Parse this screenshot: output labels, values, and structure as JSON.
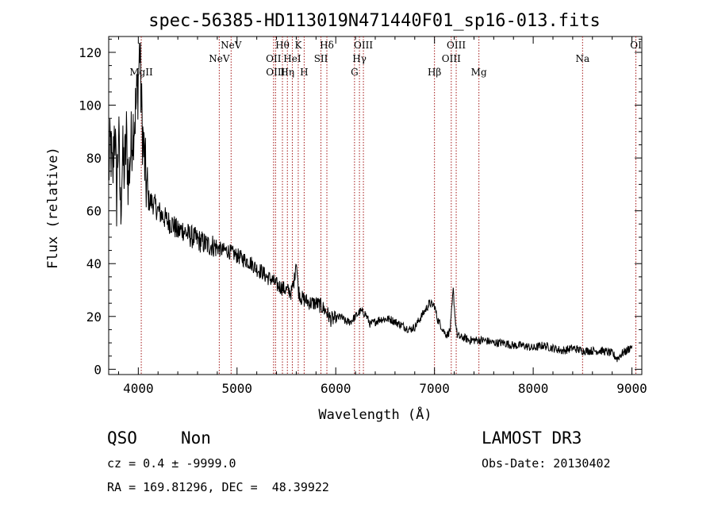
{
  "chart_data": {
    "type": "line",
    "title": "spec-56385-HD113019N471440F01_sp16-013.fits",
    "xlabel": "Wavelength (Å)",
    "ylabel": "Flux (relative)",
    "xlim": [
      3700,
      9100
    ],
    "ylim": [
      -2,
      126
    ],
    "xticks": [
      4000,
      5000,
      6000,
      7000,
      8000,
      9000
    ],
    "xtick_labels": [
      "4000",
      "5000",
      "6000",
      "7000",
      "8000",
      "9000"
    ],
    "yticks": [
      0,
      20,
      40,
      60,
      80,
      100,
      120
    ],
    "ytick_labels": [
      "0",
      "20",
      "40",
      "60",
      "80",
      "100",
      "120"
    ],
    "grid": false,
    "series": [
      {
        "name": "flux",
        "x": [
          3700,
          3720,
          3740,
          3760,
          3780,
          3800,
          3820,
          3840,
          3860,
          3880,
          3900,
          3920,
          3940,
          3960,
          3980,
          4000,
          4015,
          4030,
          4050,
          4080,
          4100,
          4150,
          4200,
          4250,
          4300,
          4350,
          4400,
          4450,
          4500,
          4550,
          4600,
          4650,
          4700,
          4750,
          4800,
          4850,
          4900,
          4950,
          5000,
          5050,
          5100,
          5150,
          5200,
          5250,
          5300,
          5350,
          5400,
          5450,
          5500,
          5550,
          5580,
          5600,
          5620,
          5650,
          5700,
          5750,
          5800,
          5850,
          5900,
          5950,
          6000,
          6050,
          6100,
          6150,
          6200,
          6250,
          6300,
          6350,
          6400,
          6450,
          6500,
          6550,
          6600,
          6650,
          6700,
          6750,
          6800,
          6850,
          6900,
          6950,
          7000,
          7030,
          7060,
          7100,
          7130,
          7160,
          7190,
          7210,
          7230,
          7260,
          7300,
          7350,
          7400,
          7450,
          7500,
          7600,
          7700,
          7800,
          7900,
          8000,
          8100,
          8200,
          8300,
          8400,
          8500,
          8600,
          8700,
          8800,
          8850,
          8900,
          8950,
          9000
        ],
        "values": [
          75,
          85,
          70,
          95,
          65,
          90,
          60,
          80,
          75,
          88,
          70,
          82,
          90,
          95,
          100,
          110,
          122,
          100,
          85,
          70,
          64,
          63,
          60,
          58,
          56,
          55,
          52,
          53,
          51,
          50,
          49,
          48,
          47,
          47,
          46,
          45,
          45,
          44,
          43,
          42,
          41,
          40,
          38,
          37,
          35,
          34,
          32,
          31,
          30,
          29,
          34,
          42,
          30,
          27,
          26,
          25,
          25,
          24,
          22,
          19,
          19,
          20,
          18,
          18,
          20,
          22,
          21,
          17,
          18,
          19,
          19,
          19,
          18,
          17,
          16,
          15,
          16,
          19,
          22,
          25,
          24,
          19,
          17,
          14,
          13,
          15,
          30,
          19,
          13,
          12,
          12,
          11,
          11,
          11,
          11,
          10,
          10,
          9,
          9,
          8,
          9,
          8,
          7,
          8,
          7,
          7,
          7,
          6,
          4,
          6,
          7,
          9
        ]
      }
    ],
    "line_color": "#000000",
    "marker_color": "#a31515",
    "lines": [
      {
        "label": "MgII",
        "x": 4030,
        "row": 2
      },
      {
        "label": "NeV",
        "x": 4820,
        "row": 1
      },
      {
        "label": "NeV",
        "x": 4940,
        "row": 0
      },
      {
        "label": "OII",
        "x": 5370,
        "row": 1
      },
      {
        "label": "OIII",
        "x": 5390,
        "row": 2
      },
      {
        "label": "Hθ",
        "x": 5460,
        "row": 0
      },
      {
        "label": "Hη",
        "x": 5510,
        "row": 2
      },
      {
        "label": "HeI",
        "x": 5560,
        "row": 1
      },
      {
        "label": "K",
        "x": 5620,
        "row": 0
      },
      {
        "label": "H",
        "x": 5680,
        "row": 2
      },
      {
        "label": "SII",
        "x": 5850,
        "row": 1
      },
      {
        "label": "Hδ",
        "x": 5910,
        "row": 0
      },
      {
        "label": "G",
        "x": 6190,
        "row": 2
      },
      {
        "label": "Hγ",
        "x": 6240,
        "row": 1
      },
      {
        "label": "OIII",
        "x": 6280,
        "row": 0
      },
      {
        "label": "Hβ",
        "x": 7000,
        "row": 2
      },
      {
        "label": "OIII",
        "x": 7170,
        "row": 1
      },
      {
        "label": "OIII",
        "x": 7220,
        "row": 0
      },
      {
        "label": "Mg",
        "x": 7450,
        "row": 2
      },
      {
        "label": "Na",
        "x": 8500,
        "row": 1
      },
      {
        "label": "OI",
        "x": 9040,
        "row": 0
      }
    ]
  },
  "info": {
    "class": "QSO",
    "subclass": "Non",
    "survey": "LAMOST DR3",
    "cz": "cz = 0.4 ± -9999.0",
    "obs_date": "Obs-Date: 20130402",
    "coords": "RA = 169.81296, DEC =  48.39922"
  }
}
